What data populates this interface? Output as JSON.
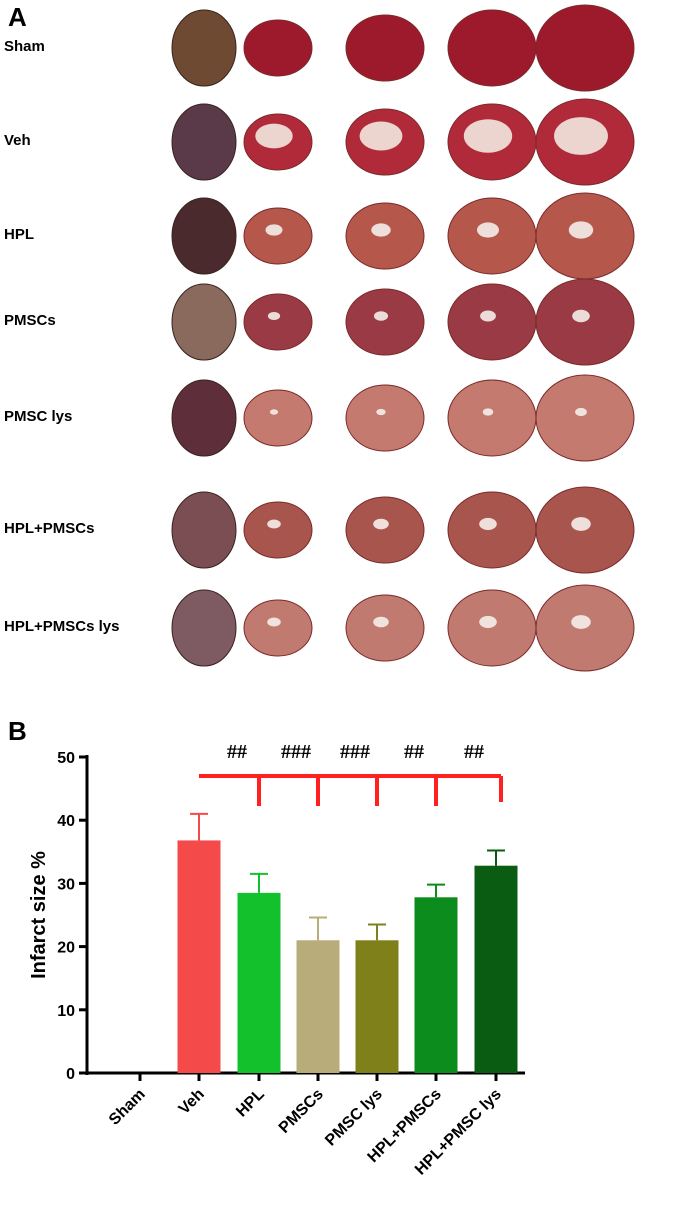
{
  "panels": {
    "a": "A",
    "b": "B"
  },
  "photo_rows": [
    {
      "label": "Sham",
      "color": "#9c1a2c",
      "whole": "#6e4a33",
      "infarct": 0
    },
    {
      "label": "Veh",
      "color": "#b02a3a",
      "whole": "#5a3a48",
      "infarct": 0.55
    },
    {
      "label": "HPL",
      "color": "#b5574a",
      "whole": "#4a2a2c",
      "infarct": 0.25
    },
    {
      "label": "PMSCs",
      "color": "#9a3a44",
      "whole": "#8a6a5c",
      "infarct": 0.18
    },
    {
      "label": "PMSC lys",
      "color": "#c47a6e",
      "whole": "#5e2e3a",
      "infarct": 0.12
    },
    {
      "label": "HPL+PMSCs",
      "color": "#a8554e",
      "whole": "#7a4e52",
      "infarct": 0.2
    },
    {
      "label": "HPL+PMSCs  lys",
      "color": "#c07a70",
      "whole": "#7e5a62",
      "infarct": 0.2
    }
  ],
  "chart_data": {
    "type": "bar",
    "title": "",
    "xlabel": "",
    "ylabel": "Infarct size %",
    "ylim": [
      0,
      50
    ],
    "yticks": [
      "0",
      "10",
      "20",
      "30",
      "40",
      "50"
    ],
    "categories": [
      "Sham",
      "Veh",
      "HPL",
      "PMSCs",
      "PMSC lys",
      "HPL+PMSCs",
      "HPL+PMSC lys"
    ],
    "values": [
      0,
      36.8,
      28.5,
      21.0,
      21.0,
      27.8,
      32.8
    ],
    "errors": [
      0,
      4.2,
      3.0,
      3.6,
      2.5,
      2.0,
      2.4
    ],
    "colors": [
      "#ffffff",
      "#f44a4a",
      "#12c12c",
      "#b7ac7a",
      "#80801a",
      "#0c8c1c",
      "#0a5c12"
    ],
    "bracket_color": "#ff2020",
    "significance": [
      {
        "category": "HPL",
        "label": "##"
      },
      {
        "category": "PMSCs",
        "label": "###"
      },
      {
        "category": "PMSC lys",
        "label": "###"
      },
      {
        "category": "HPL+PMSCs",
        "label": "##"
      },
      {
        "category": "HPL+PMSC lys",
        "label": "##"
      }
    ]
  }
}
